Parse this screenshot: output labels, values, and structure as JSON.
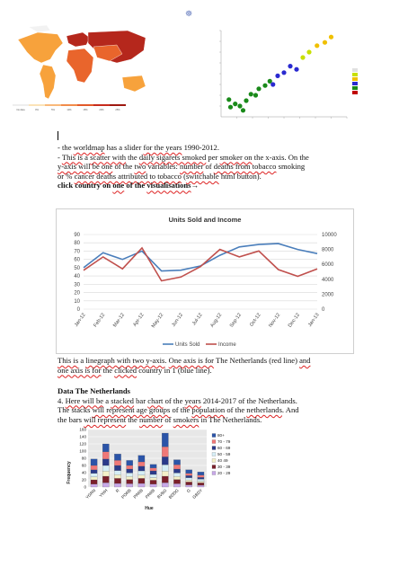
{
  "page_marker": "☸",
  "worldmap": {
    "legend_labels": [
      "No data",
      "0%",
      "5%",
      "10%",
      "15%",
      "20%",
      "25%"
    ],
    "legend_colors": [
      "#eeeeee",
      "#fbe3b8",
      "#f9b97a",
      "#f18c4b",
      "#e25a2a",
      "#c72b1c",
      "#9e1810"
    ],
    "land_color": "#e9652c",
    "north_color": "#f7a23c",
    "dark_color": "#b5271c"
  },
  "scatter": {
    "legend_colors": [
      "#e0e0e0",
      "#c8e000",
      "#f0c000",
      "#2a2ad0",
      "#1a8a1a",
      "#c00000"
    ],
    "points": [
      {
        "x": 0.6,
        "y": 0.9,
        "c": "#1a8a1a"
      },
      {
        "x": 0.9,
        "y": 1.2,
        "c": "#1a8a1a"
      },
      {
        "x": 1.2,
        "y": 1.0,
        "c": "#1a8a1a"
      },
      {
        "x": 1.6,
        "y": 1.5,
        "c": "#1a8a1a"
      },
      {
        "x": 1.9,
        "y": 2.1,
        "c": "#1a8a1a"
      },
      {
        "x": 2.2,
        "y": 2.0,
        "c": "#1a8a1a"
      },
      {
        "x": 2.4,
        "y": 2.6,
        "c": "#1a8a1a"
      },
      {
        "x": 2.8,
        "y": 2.9,
        "c": "#1a8a1a"
      },
      {
        "x": 3.1,
        "y": 3.3,
        "c": "#1a8a1a"
      },
      {
        "x": 3.3,
        "y": 3.0,
        "c": "#2a2ad0"
      },
      {
        "x": 3.6,
        "y": 3.8,
        "c": "#2a2ad0"
      },
      {
        "x": 4.0,
        "y": 4.1,
        "c": "#2a2ad0"
      },
      {
        "x": 4.4,
        "y": 4.7,
        "c": "#2a2ad0"
      },
      {
        "x": 4.8,
        "y": 4.4,
        "c": "#2a2ad0"
      },
      {
        "x": 5.2,
        "y": 5.5,
        "c": "#c8e000"
      },
      {
        "x": 5.6,
        "y": 6.0,
        "c": "#c8e000"
      },
      {
        "x": 6.1,
        "y": 6.6,
        "c": "#f0c000"
      },
      {
        "x": 6.6,
        "y": 6.9,
        "c": "#f0c000"
      },
      {
        "x": 7.0,
        "y": 7.4,
        "c": "#f0c000"
      },
      {
        "x": 1.4,
        "y": 0.6,
        "c": "#1a8a1a"
      },
      {
        "x": 0.5,
        "y": 1.6,
        "c": "#1a8a1a"
      }
    ]
  },
  "intro": {
    "line1_pre": "- the ",
    "line1_sq1": "worldmap",
    "line1_mid": " has a slider ",
    "line1_sq2": "for the years",
    "line1_post": " 1990-2012.",
    "line2_pre": "- ",
    "line2_sq1": "This is",
    "line2_mid1": " a ",
    "line2_sq2": "scatter with",
    "line2_mid2": " the ",
    "line2_sq3": "daily sigarets smoked",
    "line2_mid3": " per ",
    "line2_sq4": "smoker on",
    "line2_post": " the x-axis. On the",
    "line3_sq1": "y-axis will be one",
    "line3_mid1": " of the ",
    "line3_sq2": "two",
    "line3_mid2": " variables: ",
    "line3_sq3": "number",
    "line3_mid3": " of ",
    "line3_sq4": "deaths from tobacco",
    "line3_post": " smoking",
    "line4_pre": "or % ",
    "line4_sq1": "cancer deaths attributed to tobacco",
    "line4_mid": " (",
    "line4_sq2": "switchable",
    "line4_post": " html button).",
    "line5_pre": "click country  on ",
    "line5_sq1": "one",
    "line5_mid": " of the ",
    "line5_sq2": "visualisations",
    "line5_arrow": "→"
  },
  "units_chart": {
    "chart_data": {
      "type": "line",
      "title": "Units Sold and Income",
      "categories": [
        "Jan-12",
        "Feb-12",
        "Mar-12",
        "Apr-12",
        "May-12",
        "Jun-12",
        "Jul-12",
        "Aug-12",
        "Sep-12",
        "Oct-12",
        "Nov-12",
        "Dec-12",
        "Jan-13"
      ],
      "series": [
        {
          "name": "Units Sold",
          "axis": "left",
          "color": "#4a7ebb",
          "values": [
            50,
            68,
            60,
            70,
            46,
            47,
            52,
            65,
            75,
            78,
            79,
            72,
            67
          ]
        },
        {
          "name": "Income",
          "axis": "right",
          "color": "#c0504d",
          "values": [
            5200,
            7000,
            5400,
            8200,
            3800,
            4300,
            5700,
            8000,
            7000,
            7800,
            5300,
            4400,
            5400
          ]
        }
      ],
      "y_left": {
        "min": 0,
        "max": 90,
        "ticks": [
          0,
          10,
          20,
          30,
          40,
          50,
          60,
          70,
          80,
          90
        ]
      },
      "y_right": {
        "min": 0,
        "max": 10000,
        "ticks": [
          0,
          2000,
          4000,
          6000,
          8000,
          10000
        ]
      },
      "grid": true,
      "legend": "bottom"
    }
  },
  "linegraph_text": {
    "l1_sq1": "This is",
    "l1_mid1": " a ",
    "l1_sq2": "linegraph with two y-axis",
    "l1_mid2": ". ",
    "l1_sq3": "One axis is for",
    "l1_post": " The Netherlands (red line) ",
    "l1_sq4": "and",
    "l2_sq1": "one axis is for",
    "l2_mid": " the ",
    "l2_sq2": "clicked",
    "l2_post": " country in 1 (blue line)."
  },
  "nl_section": {
    "heading": "Data The Netherlands",
    "l1_pre": "4. ",
    "l1_sq1": "Here will be",
    "l1_mid1": " a ",
    "l1_sq2": "stacked",
    "l1_mid2": " bar ",
    "l1_sq3": "chart",
    "l1_mid3": " of the ",
    "l1_sq4": "years",
    "l1_post": " 2014-2017 of the Netherlands.",
    "l2_pre": "The stacks ",
    "l2_sq1": "will represent age groups",
    "l2_mid1": " of the ",
    "l2_sq2": "population",
    "l2_mid2": " of the ",
    "l2_sq3": "netherlands",
    "l2_post": ". And",
    "l3_pre": "the bars ",
    "l3_sq1": "will represent",
    "l3_mid": " the ",
    "l3_sq2": "number",
    "l3_mid2": " of ",
    "l3_sq3": "smokers",
    "l3_post": " in The Netherlands."
  },
  "stacked_chart": {
    "chart_data": {
      "type": "bar",
      "stacked": true,
      "ylabel": "Frequency",
      "xlabel": "Hue",
      "categories": [
        "YGRN",
        "YWH",
        "R",
        "PORB",
        "PRRB",
        "PRRB",
        "BVBG",
        "BDDG",
        "G",
        "GBDY"
      ],
      "ylim": [
        0,
        160
      ],
      "y_ticks": [
        0,
        20,
        40,
        60,
        80,
        100,
        120,
        140,
        160
      ],
      "series": [
        {
          "name": "20 - 29",
          "color": "#c8a8e8",
          "values": [
            8,
            12,
            10,
            9,
            10,
            8,
            12,
            9,
            6,
            5
          ]
        },
        {
          "name": "30 - 39",
          "color": "#7a1f2a",
          "values": [
            12,
            18,
            14,
            12,
            14,
            11,
            18,
            12,
            8,
            7
          ]
        },
        {
          "name": "40 49",
          "color": "#f4f0c8",
          "values": [
            8,
            14,
            10,
            8,
            9,
            7,
            14,
            8,
            5,
            4
          ]
        },
        {
          "name": "50 - 59",
          "color": "#d6eef6",
          "values": [
            10,
            16,
            12,
            10,
            12,
            9,
            18,
            10,
            7,
            6
          ]
        },
        {
          "name": "60 - 69",
          "color": "#2a3a8a",
          "values": [
            10,
            18,
            14,
            11,
            13,
            10,
            22,
            11,
            6,
            5
          ]
        },
        {
          "name": "70 - 79",
          "color": "#f07878",
          "values": [
            12,
            20,
            14,
            10,
            12,
            8,
            28,
            12,
            6,
            6
          ]
        },
        {
          "name": "80+",
          "color": "#2b54a8",
          "values": [
            18,
            22,
            18,
            14,
            18,
            10,
            38,
            14,
            10,
            9
          ]
        }
      ],
      "grid": true,
      "legend": "right"
    }
  }
}
